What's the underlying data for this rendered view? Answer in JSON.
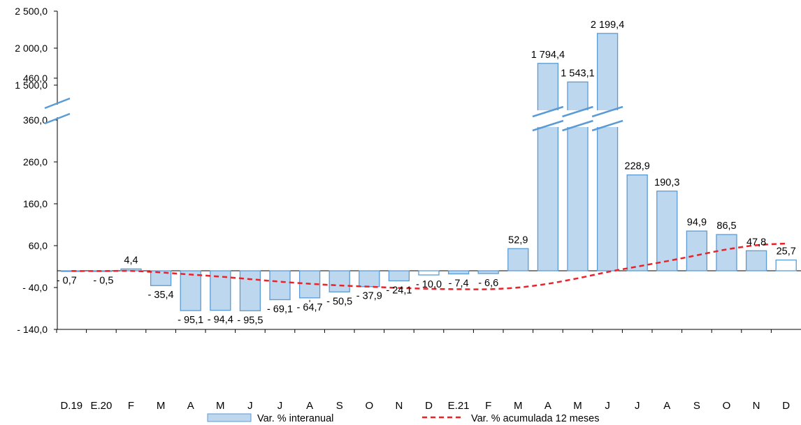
{
  "chart_data": {
    "type": "bar",
    "categories": [
      "D.19",
      "E.20",
      "F",
      "M",
      "A",
      "M",
      "J",
      "J",
      "A",
      "S",
      "O",
      "N",
      "D",
      "E.21",
      "F",
      "M",
      "A",
      "M",
      "J",
      "J",
      "A",
      "S",
      "O",
      "N",
      "D"
    ],
    "series": [
      {
        "name": "Var. % interanual",
        "type": "bar",
        "color": "#bdd7ee",
        "values": [
          -0.7,
          -0.5,
          4.4,
          -35.4,
          -95.1,
          -94.4,
          -95.5,
          -69.1,
          -64.7,
          -50.5,
          -37.9,
          -24.1,
          -10.0,
          -7.4,
          -6.6,
          52.9,
          1794.4,
          1543.1,
          2199.4,
          228.9,
          190.3,
          94.9,
          86.5,
          47.8,
          25.7
        ],
        "labels": [
          "- 0,7",
          "- 0,5",
          "4,4",
          "- 35,4",
          "- 95,1",
          "- 94,4",
          "- 95,5",
          "- 69,1",
          "- 64,7",
          "- 50,5",
          "- 37,9",
          "- 24,1",
          "- 10,0",
          "- 7,4",
          "- 6,6",
          "52,9",
          "1 794,4",
          "1 543,1",
          "2 199,4",
          "228,9",
          "190,3",
          "94,9",
          "86,5",
          "47,8",
          "25,7"
        ]
      },
      {
        "name": "Var. % acumulada 12 meses",
        "type": "line",
        "style": "dashed",
        "color": "#e8232a",
        "values": [
          -0.5,
          -0.6,
          -0.4,
          -4,
          -9,
          -14,
          -20,
          -26,
          -31,
          -35,
          -38,
          -41,
          -43,
          -44,
          -44,
          -40,
          -31,
          -18,
          -3,
          10,
          23,
          37,
          51,
          61,
          65
        ]
      }
    ],
    "y_ticks": [
      {
        "value": -140,
        "label": "- 140,0"
      },
      {
        "value": -40,
        "label": "- 40,0"
      },
      {
        "value": 60,
        "label": "60,0"
      },
      {
        "value": 160,
        "label": "160,0"
      },
      {
        "value": 260,
        "label": "260,0"
      },
      {
        "value": 360,
        "label": "360,0"
      },
      {
        "value": 460,
        "label": "460,0"
      },
      {
        "value": 1500,
        "label": "1 500,0"
      },
      {
        "value": 2000,
        "label": "2 000,0"
      },
      {
        "value": 2500,
        "label": "2 500,0"
      }
    ],
    "axis_break": {
      "lower_max": 520,
      "upper_min": 1200
    },
    "ylim": [
      -140,
      2500
    ],
    "grid": false,
    "legend_position": "bottom",
    "colors": {
      "bar_fill": "#bdd7ee",
      "bar_stroke": "#5b9bd5",
      "line": "#e8232a",
      "break_mark": "#5b9bd5"
    }
  }
}
